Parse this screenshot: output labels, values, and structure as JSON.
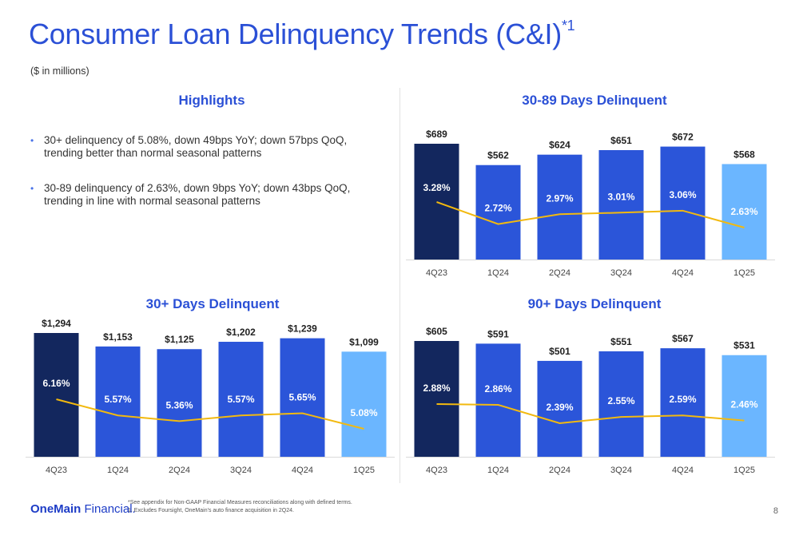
{
  "page": {
    "title": "Consumer Loan Delinquency Trends (C&I)",
    "title_superscript": "*1",
    "subtitle": "($ in millions)",
    "page_number": "8"
  },
  "highlights": {
    "heading": "Highlights",
    "bullets": [
      "30+ delinquency of 5.08%, down 49bps YoY; down 57bps QoQ, trending better than normal seasonal patterns",
      "30-89 delinquency of 2.63%, down 9bps YoY; down 43bps QoQ, trending in line with normal seasonal patterns"
    ]
  },
  "footer": {
    "logo_bold": "OneMain",
    "logo_regular": " Financial.",
    "footnote_1": "*See appendix for Non-GAAP Financial Measures reconciliations along with defined terms.",
    "footnote_2": "1. Excludes Foursight, OneMain's auto finance acquisition in 2Q24."
  },
  "colors": {
    "accent": "#2b50d6",
    "bar_first": "#13275e",
    "bar_mid": "#2b55d9",
    "bar_last": "#6bb6ff",
    "line": "#f2b90f"
  },
  "chart_data": [
    {
      "id": "d3089",
      "type": "bar",
      "title": "30-89 Days Delinquent",
      "categories": [
        "4Q23",
        "1Q24",
        "2Q24",
        "3Q24",
        "4Q24",
        "1Q25"
      ],
      "bar_values": [
        689,
        562,
        624,
        651,
        672,
        568
      ],
      "bar_labels": [
        "$689",
        "$562",
        "$624",
        "$651",
        "$672",
        "$568"
      ],
      "line_values": [
        3.28,
        2.72,
        2.97,
        3.01,
        3.06,
        2.63
      ],
      "line_labels": [
        "3.28%",
        "2.72%",
        "2.97%",
        "3.01%",
        "3.06%",
        "2.63%"
      ]
    },
    {
      "id": "d30p",
      "type": "bar",
      "title": "30+ Days Delinquent",
      "categories": [
        "4Q23",
        "1Q24",
        "2Q24",
        "3Q24",
        "4Q24",
        "1Q25"
      ],
      "bar_values": [
        1294,
        1153,
        1125,
        1202,
        1239,
        1099
      ],
      "bar_labels": [
        "$1,294",
        "$1,153",
        "$1,125",
        "$1,202",
        "$1,239",
        "$1,099"
      ],
      "line_values": [
        6.16,
        5.57,
        5.36,
        5.57,
        5.65,
        5.08
      ],
      "line_labels": [
        "6.16%",
        "5.57%",
        "5.36%",
        "5.57%",
        "5.65%",
        "5.08%"
      ]
    },
    {
      "id": "d90p",
      "type": "bar",
      "title": "90+ Days Delinquent",
      "categories": [
        "4Q23",
        "1Q24",
        "2Q24",
        "3Q24",
        "4Q24",
        "1Q25"
      ],
      "bar_values": [
        605,
        591,
        501,
        551,
        567,
        531
      ],
      "bar_labels": [
        "$605",
        "$591",
        "$501",
        "$551",
        "$567",
        "$531"
      ],
      "line_values": [
        2.88,
        2.86,
        2.39,
        2.55,
        2.59,
        2.46
      ],
      "line_labels": [
        "2.88%",
        "2.86%",
        "2.39%",
        "2.55%",
        "2.59%",
        "2.46%"
      ]
    }
  ]
}
